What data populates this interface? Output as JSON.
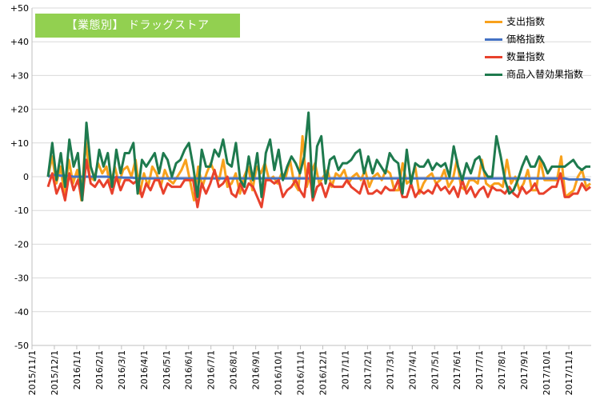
{
  "chart_data": {
    "type": "line",
    "title": "【業態別】 ドラッグストア",
    "title_bg_color": "#92d050",
    "ylim": [
      -50,
      50
    ],
    "y_ticks": [
      "+50",
      "+40",
      "+30",
      "+20",
      "+10",
      "0",
      "-10",
      "-20",
      "-30",
      "-40",
      "-50"
    ],
    "x_tick_labels": [
      "2015/11/1",
      "2015/12/1",
      "2016/1/1",
      "2016/2/1",
      "2016/3/1",
      "2016/4/1",
      "2016/5/1",
      "2016/6/1",
      "2016/7/1",
      "2016/8/1",
      "2016/9/1",
      "2016/10/1",
      "2016/11/1",
      "2016/12/1",
      "2017/1/1",
      "2017/2/1",
      "2017/3/1",
      "2017/4/1",
      "2017/5/1",
      "2017/6/1",
      "2017/7/1",
      "2017/8/1",
      "2017/9/1",
      "2017/10/1",
      "2017/11/1"
    ],
    "grid": true,
    "legend_position": "top-right",
    "series": [
      {
        "name": "支出指数",
        "color": "#f8a11c",
        "values": [
          0,
          6,
          -2,
          3,
          -6,
          5,
          -2,
          2,
          -7,
          11,
          0,
          -1,
          4,
          1,
          3,
          -3,
          3,
          -2,
          2,
          3,
          0,
          5,
          -5,
          1,
          -3,
          3,
          1,
          -3,
          2,
          -1,
          -2,
          0,
          2,
          5,
          -1,
          -7,
          3,
          -3,
          1,
          4,
          1,
          -1,
          5,
          -3,
          -2,
          1,
          -5,
          0,
          3,
          -4,
          3,
          1,
          4,
          -1,
          0,
          -2,
          1,
          0,
          5,
          -2,
          -4,
          12,
          -3,
          1,
          4,
          -2,
          0,
          2,
          -3,
          1,
          0,
          2,
          -2,
          0,
          1,
          -1,
          2,
          -3,
          0,
          1,
          -1,
          2,
          1,
          -4,
          -4,
          4,
          -2,
          -1,
          3,
          -5,
          -2,
          0,
          1,
          -2,
          -1,
          2,
          -3,
          -1,
          5,
          -3,
          -4,
          -1,
          -1,
          -2,
          5,
          -2,
          -3,
          -2,
          -2,
          -3,
          5,
          -2,
          0,
          -4,
          -2,
          2,
          -4,
          -4,
          5,
          -1,
          -1,
          -1,
          -1,
          6,
          -6,
          -5,
          -4,
          0,
          2,
          -3,
          -2
        ]
      },
      {
        "name": "価格指数",
        "color": "#4472c4",
        "values": [
          0,
          0.5,
          0.5,
          0.3,
          0.3,
          0.2,
          0,
          0,
          0,
          0,
          0,
          0,
          0,
          0,
          0,
          -0.2,
          -0.2,
          -0.2,
          -0.3,
          -0.3,
          -0.3,
          -0.5,
          -0.5,
          -0.5,
          -0.5,
          -0.5,
          -0.5,
          -0.5,
          -0.5,
          -0.5,
          -0.5,
          -0.5,
          -0.5,
          -0.5,
          -0.5,
          -0.5,
          -0.5,
          -0.5,
          -0.5,
          -0.5,
          -0.5,
          -0.5,
          -0.5,
          -0.5,
          -0.5,
          -0.5,
          -0.5,
          -0.5,
          -0.5,
          -0.5,
          -0.5,
          -0.5,
          -0.5,
          -0.5,
          -0.5,
          -0.5,
          -0.5,
          -0.5,
          -0.5,
          -0.5,
          -0.5,
          -0.5,
          -0.5,
          -0.5,
          -0.5,
          -0.5,
          -0.5,
          -0.5,
          -0.5,
          -0.5,
          -0.5,
          -0.5,
          -0.5,
          -0.5,
          -0.5,
          -0.5,
          -0.5,
          -0.5,
          -0.5,
          -0.5,
          -0.5,
          -0.5,
          -0.5,
          -0.5,
          -0.5,
          -0.5,
          -0.5,
          -0.5,
          -0.5,
          -0.5,
          -0.5,
          -0.5,
          -0.5,
          -0.5,
          -0.5,
          -0.5,
          -0.5,
          -0.5,
          -0.5,
          -0.5,
          -0.5,
          -0.5,
          -0.5,
          -0.5,
          -0.5,
          -0.5,
          -0.5,
          -0.5,
          -0.5,
          -0.5,
          -0.5,
          -0.5,
          -0.5,
          -0.5,
          -0.5,
          -0.5,
          -0.5,
          -0.5,
          -0.5,
          -0.5,
          -0.5,
          -0.5,
          -0.5,
          -0.8,
          -0.8,
          -0.8,
          -0.8,
          -0.8,
          -1
        ]
      },
      {
        "name": "数量指数",
        "color": "#e8412c",
        "values": [
          -3,
          1,
          -5,
          -2,
          -7,
          1,
          -4,
          -1,
          -7,
          5,
          -2,
          -3,
          -1,
          -3,
          -1,
          -5,
          0,
          -4,
          -1,
          -1,
          -2,
          -1,
          -6,
          -2,
          -4,
          -1,
          -1,
          -5,
          -2,
          -3,
          -3,
          -3,
          -1,
          -1,
          -1,
          -9,
          -2,
          -5,
          -2,
          2,
          -3,
          -2,
          0,
          -5,
          -6,
          -2,
          -5,
          -2,
          -3,
          -6,
          -9,
          -1,
          -1,
          -2,
          -1,
          -6,
          -4,
          -3,
          -1,
          -4,
          -6,
          4,
          -7,
          -3,
          -2,
          -6,
          -2,
          -3,
          -3,
          -3,
          -1,
          -3,
          -4,
          -5,
          -1,
          -5,
          -5,
          -4,
          -5,
          -3,
          -4,
          -4,
          -1,
          -6,
          -6,
          -2,
          -6,
          -4,
          -5,
          -4,
          -5,
          -2,
          -4,
          -3,
          -5,
          -3,
          -6,
          -1,
          -5,
          -3,
          -6,
          -4,
          -3,
          -6,
          -3,
          -4,
          -4,
          -5,
          -3,
          -5,
          -6,
          -3,
          -5,
          -4,
          -2,
          -5,
          -5,
          -4,
          -3,
          -3,
          1,
          -6,
          -6,
          -5,
          -5,
          -2,
          -4,
          -3
        ]
      },
      {
        "name": "商品入替効果指数",
        "color": "#1e7a4e",
        "values": [
          0,
          10,
          -1,
          7,
          -3,
          11,
          3,
          7,
          -7,
          16,
          3,
          -1,
          8,
          3,
          7,
          -3,
          8,
          1,
          7,
          7,
          10,
          -5,
          5,
          3,
          5,
          7,
          1,
          7,
          5,
          0,
          4,
          5,
          8,
          10,
          3,
          -6,
          8,
          3,
          3,
          8,
          6,
          11,
          4,
          3,
          10,
          -1,
          -3,
          6,
          -1,
          7,
          -6,
          7,
          11,
          2,
          8,
          -1,
          3,
          6,
          4,
          1,
          6,
          19,
          -6,
          9,
          12,
          -2,
          5,
          6,
          2,
          4,
          4,
          5,
          7,
          8,
          1,
          6,
          1,
          5,
          3,
          1,
          7,
          5,
          4,
          -5,
          8,
          -2,
          4,
          3,
          3,
          5,
          2,
          4,
          3,
          4,
          0,
          9,
          3,
          -1,
          4,
          1,
          5,
          6,
          2,
          0,
          0,
          12,
          6,
          -1,
          -5,
          -4,
          -1,
          3,
          6,
          3,
          3,
          6,
          4,
          1,
          3,
          3,
          3,
          3,
          4,
          5,
          3,
          2,
          3,
          3
        ]
      }
    ]
  }
}
